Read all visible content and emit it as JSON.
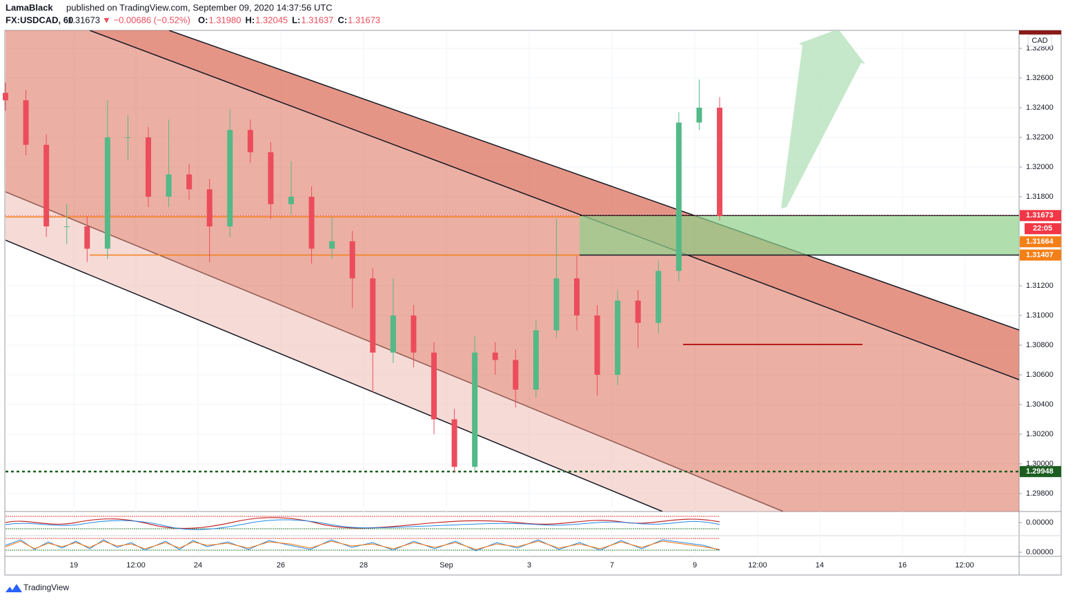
{
  "chart_data": {
    "type": "candlestick",
    "author": "LamaBlack",
    "title": "published on TradingView.com, September 09, 2020 14:37:56 UTC",
    "symbol": "FX:USDCAD, 60",
    "last": "1.31673",
    "change": "▼ −0.00686 (−0.52%)",
    "ohlc": [
      {
        "key": "O:",
        "text": "1.31980"
      },
      {
        "key": "H:",
        "text": "1.32045"
      },
      {
        "key": "L:",
        "text": "1.31637"
      },
      {
        "key": "C:",
        "text": "1.31673"
      }
    ],
    "currency": "CAD",
    "countdown": "22:05",
    "brand": "TradingView",
    "up_color": "#53b987",
    "down_color": "#eb4d5c",
    "open": [
      1.325,
      1.3245,
      1.3215,
      1.316,
      1.316,
      1.3145,
      1.322,
      1.322,
      1.318,
      1.3195,
      1.3185,
      1.316,
      1.3225,
      1.321,
      1.3175,
      1.318,
      1.3145,
      1.315,
      1.3125,
      1.3075,
      1.31,
      1.3075,
      1.303,
      1.2998,
      1.3075,
      1.307,
      1.305,
      1.309,
      1.3125,
      1.31,
      1.306,
      1.311,
      1.3095,
      1.313,
      1.323,
      1.324
    ],
    "high": [
      1.3257,
      1.3252,
      1.3222,
      1.3175,
      1.3167,
      1.3245,
      1.3235,
      1.3227,
      1.3232,
      1.3202,
      1.3192,
      1.3239,
      1.3232,
      1.3217,
      1.3204,
      1.3187,
      1.3166,
      1.3157,
      1.3132,
      1.3125,
      1.3107,
      1.3082,
      1.3037,
      1.3086,
      1.3082,
      1.3077,
      1.3097,
      1.3165,
      1.314,
      1.3107,
      1.3117,
      1.3117,
      1.3137,
      1.3237,
      1.3259,
      1.3247
    ],
    "low": [
      1.3238,
      1.3208,
      1.3153,
      1.3148,
      1.3136,
      1.3138,
      1.3205,
      1.3173,
      1.3173,
      1.3178,
      1.3136,
      1.3153,
      1.3203,
      1.3165,
      1.3168,
      1.3135,
      1.3138,
      1.3105,
      1.3048,
      1.3068,
      1.3065,
      1.302,
      1.2994,
      1.2994,
      1.306,
      1.3038,
      1.3045,
      1.3085,
      1.309,
      1.3046,
      1.3053,
      1.3078,
      1.3088,
      1.3123,
      1.3225,
      1.3164
    ],
    "close": [
      1.3245,
      1.3215,
      1.316,
      1.316,
      1.3145,
      1.322,
      1.322,
      1.318,
      1.3195,
      1.3185,
      1.316,
      1.3225,
      1.321,
      1.3175,
      1.318,
      1.3145,
      1.315,
      1.3125,
      1.3075,
      1.31,
      1.3075,
      1.303,
      1.2998,
      1.3075,
      1.307,
      1.305,
      1.309,
      1.3125,
      1.31,
      1.306,
      1.311,
      1.3095,
      1.313,
      1.323,
      1.324,
      1.3167
    ],
    "ylim": [
      1.29679,
      1.32921
    ],
    "yticks": [
      {
        "value": 1.298,
        "label": "1.29800"
      },
      {
        "value": 1.3,
        "label": "1.30000"
      },
      {
        "value": 1.302,
        "label": "1.30200"
      },
      {
        "value": 1.304,
        "label": "1.30400"
      },
      {
        "value": 1.306,
        "label": "1.30600"
      },
      {
        "value": 1.308,
        "label": "1.30800"
      },
      {
        "value": 1.31,
        "label": "1.31000"
      },
      {
        "value": 1.312,
        "label": "1.31200"
      },
      {
        "value": 1.318,
        "label": "1.31800"
      },
      {
        "value": 1.32,
        "label": "1.32000"
      },
      {
        "value": 1.322,
        "label": "1.32200"
      },
      {
        "value": 1.324,
        "label": "1.32400"
      },
      {
        "value": 1.326,
        "label": "1.32600"
      },
      {
        "value": 1.328,
        "label": "1.32800"
      }
    ],
    "xtick_labels": [
      "19",
      "12:00",
      "24",
      "26",
      "28",
      "Sep",
      "3",
      "7",
      "9",
      "12:00",
      "14",
      "16",
      "12:00"
    ],
    "price_labels": [
      {
        "value": 1.31673,
        "label": "1.31673",
        "color": "#f23645",
        "line": "dotted"
      },
      {
        "value": 1.31664,
        "label": "1.31664",
        "color": "#f57f17",
        "line": "solid"
      },
      {
        "value": 1.31407,
        "label": "1.31407",
        "color": "#f57f17",
        "line": "solid"
      },
      {
        "value": 1.29948,
        "label": "1.29948",
        "color": "#1b5e20",
        "line": "dashed"
      }
    ],
    "zone": {
      "top": 1.31673,
      "bottom": 1.31407,
      "color": "#8fd18a"
    },
    "indicator_labels": [
      {
        "value": 0,
        "label": "0.00000"
      },
      {
        "value": 0,
        "label": "0.00000"
      }
    ]
  }
}
